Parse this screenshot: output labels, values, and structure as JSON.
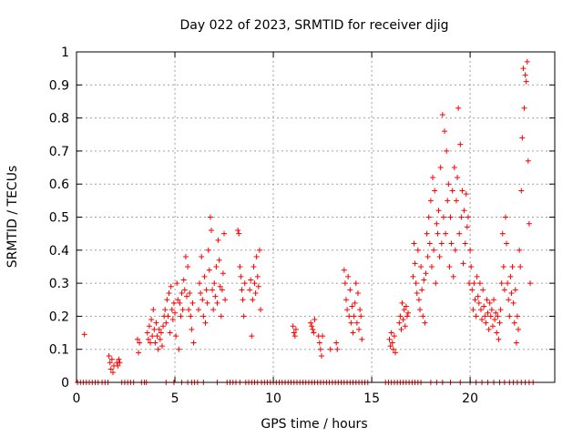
{
  "chart_data": {
    "type": "scatter",
    "title": "Day 022 of 2023, SRMTID for receiver djig",
    "xlabel": "GPS time / hours",
    "ylabel": "SRMTID / TECUs",
    "xlim": [
      0,
      24.3
    ],
    "ylim": [
      0,
      1
    ],
    "x_ticks": [
      0,
      5,
      10,
      15,
      20
    ],
    "x_tick_labels": [
      "0",
      "5",
      "10",
      "15",
      "20"
    ],
    "y_ticks": [
      0,
      0.1,
      0.2,
      0.3,
      0.4,
      0.5,
      0.6,
      0.7,
      0.8,
      0.9,
      1
    ],
    "y_tick_labels": [
      "0",
      "0.1",
      "0.2",
      "0.3",
      "0.4",
      "0.5",
      "0.6",
      "0.7",
      "0.8",
      "0.9",
      "1"
    ],
    "grid": true,
    "marker": "+",
    "color": "#ff0000",
    "series": [
      {
        "name": "SRMTID",
        "points": [
          [
            0.4,
            0.145
          ],
          [
            1.65,
            0.08
          ],
          [
            1.7,
            0.06
          ],
          [
            1.75,
            0.04
          ],
          [
            1.8,
            0.07
          ],
          [
            1.85,
            0.03
          ],
          [
            1.9,
            0.05
          ],
          [
            2.05,
            0.06
          ],
          [
            2.1,
            0.05
          ],
          [
            2.15,
            0.07
          ],
          [
            2.2,
            0.06
          ],
          [
            3.1,
            0.13
          ],
          [
            3.15,
            0.09
          ],
          [
            3.2,
            0.12
          ],
          [
            3.6,
            0.15
          ],
          [
            3.65,
            0.13
          ],
          [
            3.7,
            0.17
          ],
          [
            3.75,
            0.12
          ],
          [
            3.8,
            0.19
          ],
          [
            3.85,
            0.14
          ],
          [
            3.9,
            0.22
          ],
          [
            3.95,
            0.16
          ],
          [
            4.0,
            0.12
          ],
          [
            4.05,
            0.18
          ],
          [
            4.1,
            0.14
          ],
          [
            4.15,
            0.1
          ],
          [
            4.2,
            0.16
          ],
          [
            4.25,
            0.13
          ],
          [
            4.3,
            0.15
          ],
          [
            4.35,
            0.11
          ],
          [
            4.4,
            0.17
          ],
          [
            4.45,
            0.2
          ],
          [
            4.5,
            0.22
          ],
          [
            4.55,
            0.18
          ],
          [
            4.6,
            0.25
          ],
          [
            4.65,
            0.2
          ],
          [
            4.7,
            0.27
          ],
          [
            4.75,
            0.15
          ],
          [
            4.8,
            0.29
          ],
          [
            4.85,
            0.22
          ],
          [
            4.9,
            0.19
          ],
          [
            4.95,
            0.24
          ],
          [
            5.0,
            0.21
          ],
          [
            5.05,
            0.14
          ],
          [
            5.1,
            0.3
          ],
          [
            5.15,
            0.25
          ],
          [
            5.2,
            0.1
          ],
          [
            5.25,
            0.24
          ],
          [
            5.3,
            0.2
          ],
          [
            5.35,
            0.27
          ],
          [
            5.4,
            0.22
          ],
          [
            5.45,
            0.31
          ],
          [
            5.5,
            0.28
          ],
          [
            5.55,
            0.38
          ],
          [
            5.6,
            0.26
          ],
          [
            5.65,
            0.35
          ],
          [
            5.7,
            0.22
          ],
          [
            5.75,
            0.27
          ],
          [
            5.8,
            0.2
          ],
          [
            5.85,
            0.16
          ],
          [
            5.9,
            0.24
          ],
          [
            5.95,
            0.12
          ],
          [
            6.2,
            0.22
          ],
          [
            6.25,
            0.3
          ],
          [
            6.3,
            0.27
          ],
          [
            6.35,
            0.38
          ],
          [
            6.4,
            0.25
          ],
          [
            6.45,
            0.2
          ],
          [
            6.5,
            0.32
          ],
          [
            6.55,
            0.18
          ],
          [
            6.6,
            0.28
          ],
          [
            6.65,
            0.24
          ],
          [
            6.7,
            0.4
          ],
          [
            6.75,
            0.34
          ],
          [
            6.8,
            0.5
          ],
          [
            6.85,
            0.46
          ],
          [
            6.9,
            0.28
          ],
          [
            6.95,
            0.22
          ],
          [
            7.0,
            0.3
          ],
          [
            7.05,
            0.26
          ],
          [
            7.1,
            0.35
          ],
          [
            7.15,
            0.24
          ],
          [
            7.2,
            0.43
          ],
          [
            7.25,
            0.37
          ],
          [
            7.3,
            0.29
          ],
          [
            7.35,
            0.2
          ],
          [
            7.4,
            0.28
          ],
          [
            7.45,
            0.33
          ],
          [
            7.5,
            0.45
          ],
          [
            7.55,
            0.25
          ],
          [
            8.2,
            0.46
          ],
          [
            8.25,
            0.45
          ],
          [
            8.3,
            0.35
          ],
          [
            8.35,
            0.32
          ],
          [
            8.4,
            0.28
          ],
          [
            8.45,
            0.25
          ],
          [
            8.5,
            0.2
          ],
          [
            8.55,
            0.3
          ],
          [
            8.8,
            0.28
          ],
          [
            8.85,
            0.31
          ],
          [
            8.9,
            0.14
          ],
          [
            8.95,
            0.25
          ],
          [
            9.0,
            0.35
          ],
          [
            9.05,
            0.3
          ],
          [
            9.1,
            0.27
          ],
          [
            9.15,
            0.38
          ],
          [
            9.2,
            0.32
          ],
          [
            9.25,
            0.29
          ],
          [
            9.3,
            0.4
          ],
          [
            9.35,
            0.22
          ],
          [
            11.0,
            0.17
          ],
          [
            11.05,
            0.15
          ],
          [
            11.1,
            0.14
          ],
          [
            11.15,
            0.16
          ],
          [
            11.9,
            0.18
          ],
          [
            11.95,
            0.17
          ],
          [
            12.0,
            0.16
          ],
          [
            12.05,
            0.15
          ],
          [
            12.1,
            0.19
          ],
          [
            12.3,
            0.14
          ],
          [
            12.35,
            0.12
          ],
          [
            12.4,
            0.1
          ],
          [
            12.45,
            0.08
          ],
          [
            12.5,
            0.14
          ],
          [
            12.9,
            0.1
          ],
          [
            13.2,
            0.12
          ],
          [
            13.25,
            0.1
          ],
          [
            13.6,
            0.34
          ],
          [
            13.65,
            0.3
          ],
          [
            13.7,
            0.25
          ],
          [
            13.75,
            0.22
          ],
          [
            13.8,
            0.32
          ],
          [
            13.85,
            0.2
          ],
          [
            13.9,
            0.28
          ],
          [
            13.95,
            0.18
          ],
          [
            14.0,
            0.23
          ],
          [
            14.05,
            0.15
          ],
          [
            14.1,
            0.2
          ],
          [
            14.15,
            0.24
          ],
          [
            14.2,
            0.3
          ],
          [
            14.25,
            0.18
          ],
          [
            14.3,
            0.27
          ],
          [
            14.35,
            0.16
          ],
          [
            14.4,
            0.22
          ],
          [
            14.45,
            0.2
          ],
          [
            14.5,
            0.13
          ],
          [
            15.9,
            0.13
          ],
          [
            15.95,
            0.11
          ],
          [
            16.0,
            0.15
          ],
          [
            16.05,
            0.12
          ],
          [
            16.1,
            0.1
          ],
          [
            16.15,
            0.14
          ],
          [
            16.2,
            0.09
          ],
          [
            16.4,
            0.18
          ],
          [
            16.45,
            0.2
          ],
          [
            16.5,
            0.16
          ],
          [
            16.55,
            0.24
          ],
          [
            16.6,
            0.19
          ],
          [
            16.65,
            0.22
          ],
          [
            16.7,
            0.17
          ],
          [
            16.75,
            0.23
          ],
          [
            16.8,
            0.2
          ],
          [
            16.85,
            0.21
          ],
          [
            17.1,
            0.32
          ],
          [
            17.15,
            0.42
          ],
          [
            17.2,
            0.36
          ],
          [
            17.25,
            0.3
          ],
          [
            17.3,
            0.27
          ],
          [
            17.35,
            0.4
          ],
          [
            17.4,
            0.25
          ],
          [
            17.45,
            0.22
          ],
          [
            17.5,
            0.35
          ],
          [
            17.55,
            0.28
          ],
          [
            17.6,
            0.2
          ],
          [
            17.65,
            0.31
          ],
          [
            17.7,
            0.18
          ],
          [
            17.75,
            0.33
          ],
          [
            17.8,
            0.45
          ],
          [
            17.85,
            0.38
          ],
          [
            17.9,
            0.5
          ],
          [
            17.95,
            0.42
          ],
          [
            18.0,
            0.55
          ],
          [
            18.05,
            0.35
          ],
          [
            18.1,
            0.62
          ],
          [
            18.15,
            0.4
          ],
          [
            18.2,
            0.58
          ],
          [
            18.25,
            0.3
          ],
          [
            18.3,
            0.48
          ],
          [
            18.35,
            0.45
          ],
          [
            18.4,
            0.52
          ],
          [
            18.45,
            0.38
          ],
          [
            18.5,
            0.65
          ],
          [
            18.55,
            0.42
          ],
          [
            18.6,
            0.81
          ],
          [
            18.65,
            0.5
          ],
          [
            18.7,
            0.76
          ],
          [
            18.75,
            0.45
          ],
          [
            18.8,
            0.7
          ],
          [
            18.85,
            0.55
          ],
          [
            18.9,
            0.6
          ],
          [
            18.95,
            0.35
          ],
          [
            19.0,
            0.5
          ],
          [
            19.05,
            0.42
          ],
          [
            19.1,
            0.58
          ],
          [
            19.15,
            0.32
          ],
          [
            19.2,
            0.65
          ],
          [
            19.25,
            0.4
          ],
          [
            19.3,
            0.55
          ],
          [
            19.35,
            0.62
          ],
          [
            19.4,
            0.83
          ],
          [
            19.45,
            0.45
          ],
          [
            19.5,
            0.72
          ],
          [
            19.55,
            0.5
          ],
          [
            19.6,
            0.58
          ],
          [
            19.65,
            0.36
          ],
          [
            19.7,
            0.52
          ],
          [
            19.75,
            0.42
          ],
          [
            19.8,
            0.57
          ],
          [
            19.85,
            0.47
          ],
          [
            19.9,
            0.5
          ],
          [
            19.95,
            0.3
          ],
          [
            20.0,
            0.4
          ],
          [
            20.05,
            0.35
          ],
          [
            20.1,
            0.28
          ],
          [
            20.15,
            0.22
          ],
          [
            20.2,
            0.3
          ],
          [
            20.25,
            0.25
          ],
          [
            20.3,
            0.2
          ],
          [
            20.35,
            0.32
          ],
          [
            20.4,
            0.26
          ],
          [
            20.45,
            0.24
          ],
          [
            20.5,
            0.3
          ],
          [
            20.55,
            0.22
          ],
          [
            20.6,
            0.19
          ],
          [
            20.65,
            0.28
          ],
          [
            20.7,
            0.23
          ],
          [
            20.75,
            0.2
          ],
          [
            20.8,
            0.18
          ],
          [
            20.85,
            0.25
          ],
          [
            20.9,
            0.21
          ],
          [
            20.95,
            0.16
          ],
          [
            21.0,
            0.24
          ],
          [
            21.05,
            0.2
          ],
          [
            21.1,
            0.22
          ],
          [
            21.15,
            0.17
          ],
          [
            21.2,
            0.25
          ],
          [
            21.25,
            0.19
          ],
          [
            21.3,
            0.21
          ],
          [
            21.35,
            0.15
          ],
          [
            21.4,
            0.2
          ],
          [
            21.45,
            0.13
          ],
          [
            21.5,
            0.18
          ],
          [
            21.55,
            0.22
          ],
          [
            21.6,
            0.3
          ],
          [
            21.65,
            0.45
          ],
          [
            21.7,
            0.35
          ],
          [
            21.75,
            0.28
          ],
          [
            21.8,
            0.5
          ],
          [
            21.85,
            0.42
          ],
          [
            21.9,
            0.3
          ],
          [
            21.95,
            0.25
          ],
          [
            22.0,
            0.2
          ],
          [
            22.05,
            0.32
          ],
          [
            22.1,
            0.27
          ],
          [
            22.15,
            0.35
          ],
          [
            22.2,
            0.24
          ],
          [
            22.25,
            0.18
          ],
          [
            22.3,
            0.28
          ],
          [
            22.35,
            0.12
          ],
          [
            22.4,
            0.2
          ],
          [
            22.45,
            0.16
          ],
          [
            22.5,
            0.4
          ],
          [
            22.55,
            0.35
          ],
          [
            22.6,
            0.58
          ],
          [
            22.65,
            0.74
          ],
          [
            22.7,
            0.95
          ],
          [
            22.75,
            0.83
          ],
          [
            22.8,
            0.93
          ],
          [
            22.85,
            0.91
          ],
          [
            22.9,
            0.97
          ],
          [
            22.95,
            0.67
          ],
          [
            23.0,
            0.48
          ],
          [
            23.05,
            0.3
          ]
        ],
        "zero_points": [
          0.05,
          0.2,
          0.35,
          0.5,
          0.65,
          0.8,
          0.95,
          1.1,
          1.3,
          1.45,
          1.6,
          2.3,
          2.45,
          2.6,
          2.75,
          2.9,
          3.3,
          3.45,
          3.55,
          4.55,
          4.95,
          5.35,
          5.65,
          5.85,
          6.0,
          6.15,
          6.45,
          7.15,
          7.65,
          7.8,
          7.95,
          8.1,
          8.3,
          8.6,
          8.75,
          8.9,
          9.05,
          9.2,
          9.4,
          9.55,
          9.7,
          9.85,
          10.0,
          10.15,
          10.3,
          10.45,
          10.6,
          10.75,
          10.9,
          11.05,
          11.2,
          11.35,
          11.5,
          11.65,
          11.8,
          11.95,
          12.1,
          12.25,
          12.4,
          12.55,
          12.7,
          12.85,
          13.0,
          13.15,
          13.3,
          13.45,
          13.6,
          13.75,
          13.9,
          14.05,
          14.2,
          14.35,
          14.5,
          14.65,
          14.8,
          15.7,
          15.85,
          16.0,
          16.15,
          16.3,
          16.45,
          16.6,
          16.75,
          16.9,
          17.05,
          17.2,
          17.35,
          17.5,
          18.0,
          18.3,
          18.6,
          19.0,
          19.5,
          20.0,
          20.3,
          20.6,
          20.9,
          21.2,
          21.5,
          21.75,
          22.0,
          22.2,
          22.4,
          22.6,
          22.8,
          23.0,
          23.2
        ]
      }
    ]
  }
}
